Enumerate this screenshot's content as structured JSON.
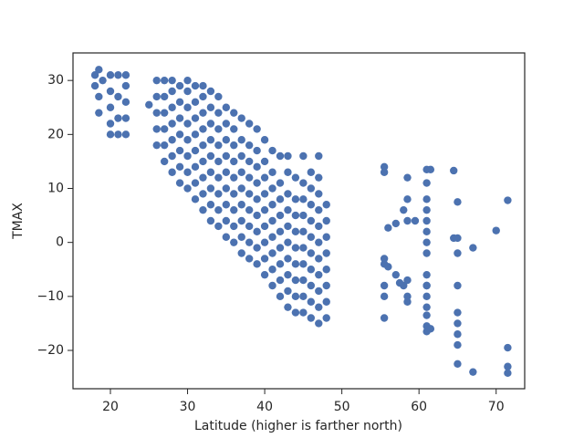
{
  "chart_data": {
    "type": "scatter",
    "xlabel": "Latitude (higher is farther north)",
    "ylabel": "TMAX",
    "color": "#4c72b0",
    "grid": false,
    "xlim": [
      15.15,
      73.7
    ],
    "ylim": [
      -27.1,
      35.1
    ],
    "xticks": [
      20,
      30,
      40,
      50,
      60,
      70
    ],
    "yticks": [
      {
        "value": -20,
        "label": "−20"
      },
      {
        "value": -10,
        "label": "−10"
      },
      0,
      10,
      20,
      30
    ],
    "x": [
      18,
      18,
      18.5,
      18.5,
      19,
      18.5,
      20,
      20,
      20,
      20,
      20,
      21,
      21,
      21,
      21,
      22,
      22,
      22,
      22,
      22,
      25,
      26,
      26,
      26,
      26,
      26,
      27,
      27,
      27,
      27,
      27,
      27,
      28,
      28,
      28,
      28,
      28,
      28,
      28,
      29,
      29,
      29,
      29,
      29,
      29,
      29,
      30,
      30,
      30,
      30,
      30,
      30,
      30,
      30,
      31,
      31,
      31,
      31,
      31,
      31,
      31,
      31,
      32,
      32,
      32,
      32,
      32,
      32,
      32,
      32,
      32,
      33,
      33,
      33,
      33,
      33,
      33,
      33,
      33,
      33,
      34,
      34,
      34,
      34,
      34,
      34,
      34,
      34,
      34,
      35,
      35,
      35,
      35,
      35,
      35,
      35,
      35,
      35,
      36,
      36,
      36,
      36,
      36,
      36,
      36,
      36,
      36,
      37,
      37,
      37,
      37,
      37,
      37,
      37,
      37,
      37,
      38,
      38,
      38,
      38,
      38,
      38,
      38,
      38,
      38,
      39,
      39,
      39,
      39,
      39,
      39,
      39,
      39,
      39,
      40,
      40,
      40,
      40,
      40,
      40,
      40,
      40,
      40,
      41,
      41,
      41,
      41,
      41,
      41,
      41,
      41,
      41,
      42,
      42,
      42,
      42,
      42,
      42,
      42,
      42,
      42,
      43,
      43,
      43,
      43,
      43,
      43,
      43,
      43,
      43,
      43,
      44,
      44,
      44,
      44,
      44,
      44,
      44,
      44,
      44,
      45,
      45,
      45,
      45,
      45,
      45,
      45,
      45,
      45,
      45,
      46,
      46,
      46,
      46,
      46,
      46,
      46,
      46,
      46,
      46,
      47,
      47,
      47,
      47,
      47,
      47,
      47,
      47,
      47,
      47,
      47,
      48,
      48,
      48,
      48,
      48,
      48,
      48,
      48,
      55.5,
      55.5,
      55.5,
      55.5,
      55.5,
      55.5,
      55.5,
      56,
      56,
      57,
      57,
      57.5,
      58,
      58,
      58.5,
      58.5,
      58.5,
      58.5,
      58.5,
      58.5,
      59.5,
      61,
      61,
      61,
      61,
      61,
      61,
      61,
      61,
      61,
      61,
      61,
      61,
      61,
      61,
      61,
      61,
      61.5,
      61.5,
      64.5,
      64.5,
      65,
      65,
      65,
      65,
      65,
      65,
      65,
      65,
      65,
      67,
      67,
      70,
      71.5,
      71.5,
      71.5,
      71.5
    ],
    "values": [
      31,
      29,
      32,
      27,
      30,
      24,
      31,
      28,
      25,
      22,
      20,
      31,
      27,
      23,
      20,
      31,
      29,
      26,
      23,
      20,
      25.5,
      18,
      21,
      24,
      27,
      30,
      15,
      18,
      21,
      24,
      27,
      30,
      13,
      16,
      19,
      22,
      25,
      28,
      30,
      11,
      14,
      17,
      20,
      23,
      26,
      29,
      10,
      13,
      16,
      19,
      22,
      25,
      28,
      30,
      8,
      11,
      14,
      17,
      20,
      23,
      26,
      29,
      6,
      9,
      12,
      15,
      18,
      21,
      24,
      27,
      29,
      4,
      7,
      10,
      13,
      16,
      19,
      22,
      25,
      28,
      3,
      6,
      9,
      12,
      15,
      18,
      21,
      24,
      27,
      1,
      4,
      7,
      10,
      13,
      16,
      19,
      22,
      25,
      0,
      3,
      6,
      9,
      12,
      15,
      18,
      21,
      24,
      -2,
      1,
      4,
      7,
      10,
      13,
      16,
      19,
      23,
      -3,
      0,
      3,
      6,
      9,
      12,
      15,
      18,
      22,
      -4,
      -1,
      2,
      5,
      8,
      11,
      14,
      17,
      21,
      -6,
      -3,
      0,
      3,
      6,
      9,
      12,
      15,
      19,
      -8,
      -5,
      -2,
      1,
      4,
      7,
      10,
      13,
      17,
      -10,
      -7,
      -4,
      -1,
      2,
      5,
      8,
      11,
      16,
      -12,
      -9,
      -6,
      -3,
      0,
      3,
      6,
      9,
      13,
      16,
      -13,
      -10,
      -7,
      -4,
      -1,
      2,
      5,
      8,
      12,
      -13,
      -10,
      -7,
      -4,
      -1,
      2,
      5,
      8,
      11,
      16,
      -14,
      -11,
      -8,
      -5,
      -2,
      1,
      4,
      7,
      10,
      13,
      -15,
      -12,
      -9,
      -6,
      -3,
      0,
      3,
      6,
      9,
      12,
      16,
      -14,
      -11,
      -8,
      -5,
      -2,
      1,
      4,
      7,
      14,
      13,
      -3,
      -4,
      -8,
      -10,
      -14,
      2.7,
      -4.5,
      -6,
      3.5,
      -7.5,
      6,
      -8,
      12,
      8,
      4,
      -7,
      -10,
      -11,
      4,
      13.5,
      11,
      8,
      6,
      4,
      2,
      0,
      -2,
      -6,
      -8,
      -10,
      -12,
      -13.5,
      -15.5,
      -16.5,
      -8,
      13.5,
      -16,
      13.3,
      0.8,
      0.8,
      7.5,
      -2,
      -8,
      -13,
      -15,
      -17,
      -19,
      -22.5,
      -1,
      -24,
      2.2,
      7.8,
      -19.5,
      -23,
      -24.2
    ]
  }
}
